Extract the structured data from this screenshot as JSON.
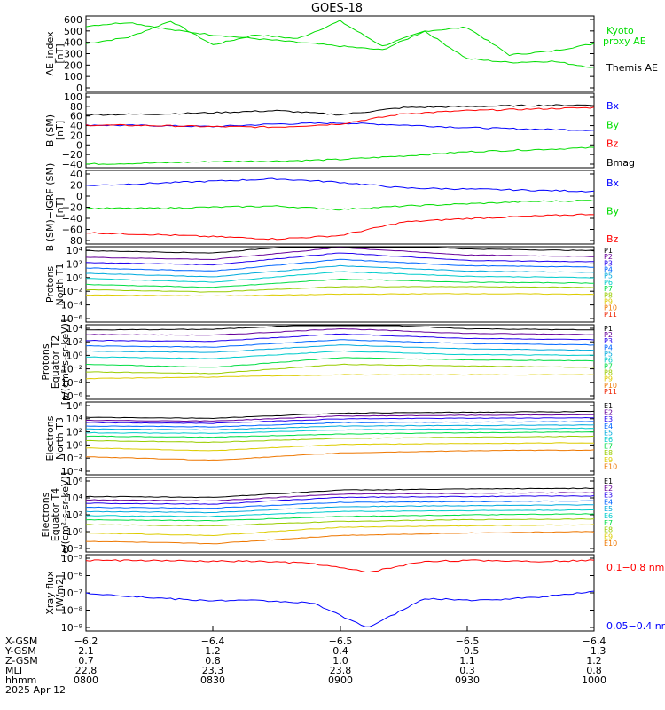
{
  "title": "GOES-18",
  "colors": {
    "black": "#000000",
    "green": "#00dd00",
    "blue": "#0000ff",
    "red": "#ff0000",
    "p_channels": [
      "#000000",
      "#660099",
      "#2200ee",
      "#0066ff",
      "#00aadd",
      "#00cccc",
      "#00dd44",
      "#99cc00",
      "#ddcc00",
      "#ee7700",
      "#ee2200",
      "#aa0000"
    ]
  },
  "panels": [
    {
      "id": "ae",
      "ylabel": [
        "AE_index",
        "[nT]"
      ],
      "ticks": [
        "600",
        "500",
        "400",
        "300",
        "200",
        "100",
        "0"
      ],
      "legend": [
        {
          "text": "Kyoto",
          "color": "#00dd00"
        },
        {
          "text": "proxy AE",
          "color": "#00dd00"
        },
        {
          "text": "Themis AE",
          "color": "#000000"
        }
      ]
    },
    {
      "id": "bsm",
      "ylabel": [
        "B (SM)",
        "[nT]"
      ],
      "ticks": [
        "100",
        "80",
        "60",
        "40",
        "20",
        "0",
        "−20",
        "−40"
      ],
      "legend": [
        {
          "text": "Bx",
          "color": "#0000ff"
        },
        {
          "text": "By",
          "color": "#00dd00"
        },
        {
          "text": "Bz",
          "color": "#ff0000"
        },
        {
          "text": "Bmag",
          "color": "#000000"
        }
      ]
    },
    {
      "id": "bigrf",
      "ylabel": [
        "B (SM)−IGRF (SM)",
        "[nT]"
      ],
      "ticks": [
        "40",
        "20",
        "0",
        "−20",
        "−40",
        "−60",
        "−80"
      ],
      "legend": [
        {
          "text": "Bx",
          "color": "#0000ff"
        },
        {
          "text": "By",
          "color": "#00dd00"
        },
        {
          "text": "Bz",
          "color": "#ff0000"
        }
      ]
    },
    {
      "id": "pnt1",
      "ylabel": [
        "Protons",
        "North T1"
      ],
      "ticks": [
        "10⁴",
        "10²",
        "10⁰",
        "10⁻²",
        "10⁻⁴",
        "10⁻⁶"
      ],
      "legend": [
        {
          "text": "P1"
        },
        {
          "text": "P2"
        },
        {
          "text": "P3"
        },
        {
          "text": "P4"
        },
        {
          "text": "P5"
        },
        {
          "text": "P6"
        },
        {
          "text": "P7"
        },
        {
          "text": "P8"
        },
        {
          "text": "P9"
        },
        {
          "text": "P10"
        },
        {
          "text": "P11"
        }
      ]
    },
    {
      "id": "pet2",
      "ylabel": [
        "Protons",
        "Equator T2",
        "[p/(cm²-s-sr-keV)]"
      ],
      "ticks": [
        "10⁴",
        "10²",
        "10⁰",
        "10⁻²",
        "10⁻⁴",
        "10⁻⁶"
      ],
      "legend": [
        {
          "text": "P1"
        },
        {
          "text": "P2"
        },
        {
          "text": "P3"
        },
        {
          "text": "P4"
        },
        {
          "text": "P5"
        },
        {
          "text": "P6"
        },
        {
          "text": "P7"
        },
        {
          "text": "P8"
        },
        {
          "text": "P9"
        },
        {
          "text": "P10"
        },
        {
          "text": "P11"
        }
      ]
    },
    {
      "id": "ent3",
      "ylabel": [
        "Electrons",
        "North T3"
      ],
      "ticks": [
        "10⁶",
        "10⁴",
        "10²",
        "10⁰",
        "10⁻²",
        "10⁻⁴"
      ],
      "legend": [
        {
          "text": "E1"
        },
        {
          "text": "E2"
        },
        {
          "text": "E3"
        },
        {
          "text": "E4"
        },
        {
          "text": "E5"
        },
        {
          "text": "E6"
        },
        {
          "text": "E7"
        },
        {
          "text": "E8"
        },
        {
          "text": "E9"
        },
        {
          "text": "E10"
        }
      ]
    },
    {
      "id": "eet4",
      "ylabel": [
        "Electrons",
        "Equator T4",
        "[e/(cm²-s-sr-keV)]"
      ],
      "ticks": [
        "10⁶",
        "10⁴",
        "10²",
        "10⁰",
        "10⁻²"
      ],
      "legend": [
        {
          "text": "E1"
        },
        {
          "text": "E2"
        },
        {
          "text": "E3"
        },
        {
          "text": "E4"
        },
        {
          "text": "E5"
        },
        {
          "text": "E6"
        },
        {
          "text": "E7"
        },
        {
          "text": "E8"
        },
        {
          "text": "E9"
        },
        {
          "text": "E10"
        }
      ]
    },
    {
      "id": "xray",
      "ylabel": [
        "Xray flux",
        "[W/m2]"
      ],
      "ticks": [
        "10⁻⁵",
        "10⁻⁶",
        "10⁻⁷",
        "10⁻⁸",
        "10⁻⁹"
      ],
      "legend": [
        {
          "text": "0.1−0.8 nm",
          "color": "#ff0000"
        },
        {
          "text": "0.05−0.4 nm",
          "color": "#0000ff"
        }
      ]
    }
  ],
  "axis": {
    "row_labels": [
      "X-GSM",
      "Y-GSM",
      "Z-GSM",
      "MLT",
      "hhmm",
      "2025 Apr 12"
    ],
    "columns": [
      [
        "−6.2",
        "2.1",
        "0.7",
        "22.8",
        "0800"
      ],
      [
        "−6.4",
        "1.2",
        "0.8",
        "23.3",
        "0830"
      ],
      [
        "−6.5",
        "0.4",
        "1.0",
        "23.8",
        "0900"
      ],
      [
        "−6.5",
        "−0.5",
        "1.1",
        "0.3",
        "0930"
      ],
      [
        "−6.4",
        "−1.3",
        "1.2",
        "0.8",
        "1000"
      ]
    ]
  },
  "chart_data": [
    {
      "type": "line",
      "ylabel": "AE_index [nT]",
      "ylim": [
        0,
        600
      ],
      "x": [
        "0800",
        "0810",
        "0820",
        "0830",
        "0840",
        "0850",
        "0900",
        "0910",
        "0920",
        "0930",
        "0940",
        "0950",
        "1000"
      ],
      "series": [
        {
          "name": "Kyoto proxy AE",
          "values": [
            380,
            430,
            560,
            370,
            450,
            420,
            560,
            360,
            480,
            510,
            290,
            320,
            380
          ]
        },
        {
          "name": "Themis AE",
          "values": [
            520,
            550,
            490,
            450,
            420,
            390,
            360,
            330,
            480,
            260,
            230,
            240,
            190
          ]
        }
      ]
    },
    {
      "type": "line",
      "ylabel": "B (SM) [nT]",
      "ylim": [
        -45,
        100
      ],
      "x": [
        "0800",
        "0815",
        "0830",
        "0845",
        "0900",
        "0915",
        "0930",
        "0945",
        "1000"
      ],
      "series": [
        {
          "name": "Bx",
          "values": [
            38,
            37,
            35,
            40,
            42,
            38,
            33,
            30,
            28
          ]
        },
        {
          "name": "By",
          "values": [
            -38,
            -36,
            -33,
            -32,
            -29,
            -22,
            -14,
            -10,
            -6
          ]
        },
        {
          "name": "Bz",
          "values": [
            38,
            37,
            35,
            34,
            40,
            60,
            66,
            69,
            72
          ]
        },
        {
          "name": "Bmag",
          "values": [
            58,
            59,
            62,
            66,
            58,
            72,
            74,
            76,
            77
          ]
        }
      ]
    },
    {
      "type": "line",
      "ylabel": "B (SM)−IGRF (SM) [nT]",
      "ylim": [
        -85,
        45
      ],
      "x": [
        "0800",
        "0815",
        "0830",
        "0845",
        "0900",
        "0915",
        "0930",
        "0945",
        "1000"
      ],
      "series": [
        {
          "name": "Bx",
          "values": [
            18,
            22,
            26,
            30,
            24,
            14,
            12,
            10,
            8
          ]
        },
        {
          "name": "By",
          "values": [
            -22,
            -22,
            -20,
            -18,
            -24,
            -18,
            -14,
            -10,
            -8
          ]
        },
        {
          "name": "Bz",
          "values": [
            -65,
            -68,
            -72,
            -76,
            -70,
            -46,
            -40,
            -36,
            -32
          ]
        }
      ]
    },
    {
      "type": "line",
      "ylabel": "Protons North T1",
      "yscale": "log",
      "ylim": [
        1e-06,
        10000.0
      ],
      "x": [
        "0800",
        "0830",
        "0900",
        "0930",
        "1000"
      ],
      "series": [
        {
          "name": "P1",
          "values": [
            3000,
            1500,
            40000,
            5000,
            3000
          ]
        },
        {
          "name": "P2",
          "values": [
            400,
            200,
            8000,
            800,
            500
          ]
        },
        {
          "name": "P3",
          "values": [
            80,
            40,
            1500,
            150,
            100
          ]
        },
        {
          "name": "P4",
          "values": [
            15,
            6,
            200,
            30,
            20
          ]
        },
        {
          "name": "P5",
          "values": [
            3,
            1,
            30,
            6,
            4
          ]
        },
        {
          "name": "P6",
          "values": [
            0.6,
            0.2,
            5,
            1.2,
            0.8
          ]
        },
        {
          "name": "P7",
          "values": [
            0.1,
            0.04,
            0.5,
            0.2,
            0.15
          ]
        },
        {
          "name": "P8",
          "values": [
            0.02,
            0.01,
            0.05,
            0.05,
            0.04
          ]
        },
        {
          "name": "P9",
          "values": [
            0.004,
            0.003,
            0.005,
            0.006,
            0.005
          ]
        },
        {
          "name": "P10",
          "values": [
            null,
            0.0001,
            null,
            null,
            null
          ]
        },
        {
          "name": "P11",
          "values": [
            null,
            null,
            null,
            null,
            null
          ]
        }
      ]
    },
    {
      "type": "line",
      "ylabel": "Protons Equator T2 [p/(cm²-s-sr-keV)]",
      "yscale": "log",
      "ylim": [
        1e-06,
        10000.0
      ],
      "x": [
        "0800",
        "0830",
        "0900",
        "0930",
        "1000"
      ],
      "series": [
        {
          "name": "P1",
          "values": [
            2000,
            2500,
            15000,
            3000,
            2000
          ]
        },
        {
          "name": "P2",
          "values": [
            500,
            400,
            3000,
            700,
            500
          ]
        },
        {
          "name": "P3",
          "values": [
            80,
            60,
            600,
            150,
            100
          ]
        },
        {
          "name": "P4",
          "values": [
            15,
            10,
            100,
            30,
            20
          ]
        },
        {
          "name": "P5",
          "values": [
            3,
            2,
            20,
            6,
            4
          ]
        },
        {
          "name": "P6",
          "values": [
            0.5,
            0.3,
            3,
            1,
            0.8
          ]
        },
        {
          "name": "P7",
          "values": [
            0.05,
            0.02,
            0.4,
            0.2,
            0.15
          ]
        },
        {
          "name": "P8",
          "values": [
            0.005,
            0.003,
            0.05,
            0.03,
            0.02
          ]
        },
        {
          "name": "P9",
          "values": [
            0.0006,
            0.001,
            0.002,
            0.002,
            0.002
          ]
        },
        {
          "name": "P10",
          "values": [
            null,
            0.0005,
            null,
            null,
            null
          ]
        },
        {
          "name": "P11",
          "values": [
            null,
            null,
            null,
            null,
            null
          ]
        }
      ]
    },
    {
      "type": "line",
      "ylabel": "Electrons North T3",
      "yscale": "log",
      "ylim": [
        0.0001,
        1000000.0
      ],
      "x": [
        "0800",
        "0830",
        "0900",
        "0930",
        "1000"
      ],
      "series": [
        {
          "name": "E1",
          "values": [
            8000,
            6000,
            30000,
            40000,
            50000
          ]
        },
        {
          "name": "E2",
          "values": [
            3000,
            2500,
            12000,
            15000,
            18000
          ]
        },
        {
          "name": "E3",
          "values": [
            1500,
            1200,
            5000,
            6000,
            7000
          ]
        },
        {
          "name": "E4",
          "values": [
            500,
            400,
            1500,
            1800,
            2000
          ]
        },
        {
          "name": "E5",
          "values": [
            200,
            150,
            500,
            600,
            700
          ]
        },
        {
          "name": "E6",
          "values": [
            60,
            50,
            150,
            200,
            250
          ]
        },
        {
          "name": "E7",
          "values": [
            20,
            15,
            40,
            60,
            80
          ]
        },
        {
          "name": "E8",
          "values": [
            5,
            3,
            10,
            15,
            20
          ]
        },
        {
          "name": "E9",
          "values": [
            0.5,
            0.2,
            1.5,
            2,
            2.5
          ]
        },
        {
          "name": "E10",
          "values": [
            0.03,
            0.01,
            0.1,
            0.2,
            0.25
          ]
        }
      ]
    },
    {
      "type": "line",
      "ylabel": "Electrons Equator T4 [e/(cm²-s-sr-keV)]",
      "yscale": "log",
      "ylim": [
        0.001,
        1000000.0
      ],
      "x": [
        "0800",
        "0830",
        "0900",
        "0930",
        "1000"
      ],
      "series": [
        {
          "name": "E1",
          "values": [
            5000,
            4000,
            30000,
            40000,
            50000
          ]
        },
        {
          "name": "E2",
          "values": [
            2000,
            1500,
            10000,
            12000,
            15000
          ]
        },
        {
          "name": "E3",
          "values": [
            800,
            600,
            4000,
            5000,
            6000
          ]
        },
        {
          "name": "E4",
          "values": [
            250,
            200,
            1000,
            1200,
            1500
          ]
        },
        {
          "name": "E5",
          "values": [
            80,
            60,
            300,
            400,
            500
          ]
        },
        {
          "name": "E6",
          "values": [
            25,
            20,
            80,
            100,
            120
          ]
        },
        {
          "name": "E7",
          "values": [
            8,
            6,
            20,
            30,
            40
          ]
        },
        {
          "name": "E8",
          "values": [
            2,
            1.5,
            5,
            8,
            10
          ]
        },
        {
          "name": "E9",
          "values": [
            0.2,
            0.1,
            1,
            1.5,
            2
          ]
        },
        {
          "name": "E10",
          "values": [
            0.02,
            0.01,
            0.1,
            0.2,
            0.3
          ]
        }
      ]
    },
    {
      "type": "line",
      "ylabel": "Xray flux [W/m2]",
      "yscale": "log",
      "ylim": [
        1e-09,
        1e-05
      ],
      "x": [
        "0800",
        "0815",
        "0830",
        "0845",
        "0900",
        "0905",
        "0915",
        "0930",
        "0945",
        "1000"
      ],
      "series": [
        {
          "name": "0.1−0.8 nm",
          "values": [
            5e-06,
            5e-06,
            4.5e-06,
            4.5e-06,
            3.5e-06,
            1.2e-06,
            4.5e-06,
            5e-06,
            4.5e-06,
            5e-06
          ]
        },
        {
          "name": "0.05−0.4 nm",
          "values": [
            1e-07,
            6e-08,
            4e-08,
            4e-08,
            3e-08,
            1.5e-09,
            5e-08,
            4e-08,
            6e-08,
            1.2e-07
          ]
        }
      ]
    }
  ]
}
